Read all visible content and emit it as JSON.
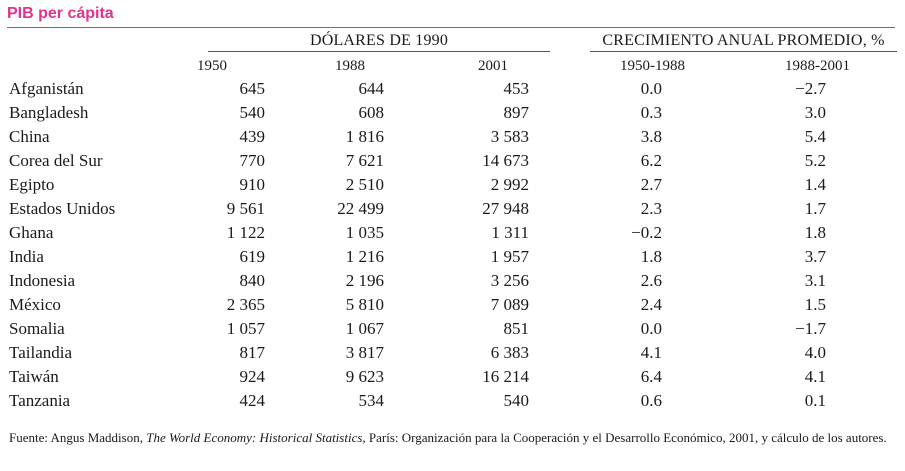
{
  "title": "PIB per cápita",
  "group_dollars": "DÓLARES DE 1990",
  "group_growth": "CRECIMIENTO ANUAL PROMEDIO, %",
  "columns": [
    "1950",
    "1988",
    "2001",
    "1950-1988",
    "1988-2001"
  ],
  "rows": [
    {
      "country": "Afganistán",
      "v1950": "645",
      "v1988": "644",
      "v2001": "453",
      "g1": "0.0",
      "g2": "−2.7"
    },
    {
      "country": "Bangladesh",
      "v1950": "540",
      "v1988": "608",
      "v2001": "897",
      "g1": "0.3",
      "g2": "3.0"
    },
    {
      "country": "China",
      "v1950": "439",
      "v1988": "1 816",
      "v2001": "3 583",
      "g1": "3.8",
      "g2": "5.4"
    },
    {
      "country": "Corea del Sur",
      "v1950": "770",
      "v1988": "7 621",
      "v2001": "14 673",
      "g1": "6.2",
      "g2": "5.2"
    },
    {
      "country": "Egipto",
      "v1950": "910",
      "v1988": "2 510",
      "v2001": "2 992",
      "g1": "2.7",
      "g2": "1.4"
    },
    {
      "country": "Estados Unidos",
      "v1950": "9 561",
      "v1988": "22 499",
      "v2001": "27 948",
      "g1": "2.3",
      "g2": "1.7"
    },
    {
      "country": "Ghana",
      "v1950": "1 122",
      "v1988": "1 035",
      "v2001": "1 311",
      "g1": "−0.2",
      "g2": "1.8"
    },
    {
      "country": "India",
      "v1950": "619",
      "v1988": "1 216",
      "v2001": "1 957",
      "g1": "1.8",
      "g2": "3.7"
    },
    {
      "country": "Indonesia",
      "v1950": "840",
      "v1988": "2 196",
      "v2001": "3 256",
      "g1": "2.6",
      "g2": "3.1"
    },
    {
      "country": "México",
      "v1950": "2 365",
      "v1988": "5 810",
      "v2001": "7 089",
      "g1": "2.4",
      "g2": "1.5"
    },
    {
      "country": "Somalia",
      "v1950": "1 057",
      "v1988": "1 067",
      "v2001": "851",
      "g1": "0.0",
      "g2": "−1.7"
    },
    {
      "country": "Tailandia",
      "v1950": "817",
      "v1988": "3 817",
      "v2001": "6 383",
      "g1": "4.1",
      "g2": "4.0"
    },
    {
      "country": "Taiwán",
      "v1950": "924",
      "v1988": "9 623",
      "v2001": "16 214",
      "g1": "6.4",
      "g2": "4.1"
    },
    {
      "country": "Tanzania",
      "v1950": "424",
      "v1988": "534",
      "v2001": "540",
      "g1": "0.6",
      "g2": "0.1"
    }
  ],
  "footer": {
    "prefix": "Fuente: Angus Maddison, ",
    "book": "The World Economy: Historical Statistics",
    "suffix": ", París: Organización para la Cooperación y el Desarrollo Económico, 2001, y cálculo de los autores."
  }
}
